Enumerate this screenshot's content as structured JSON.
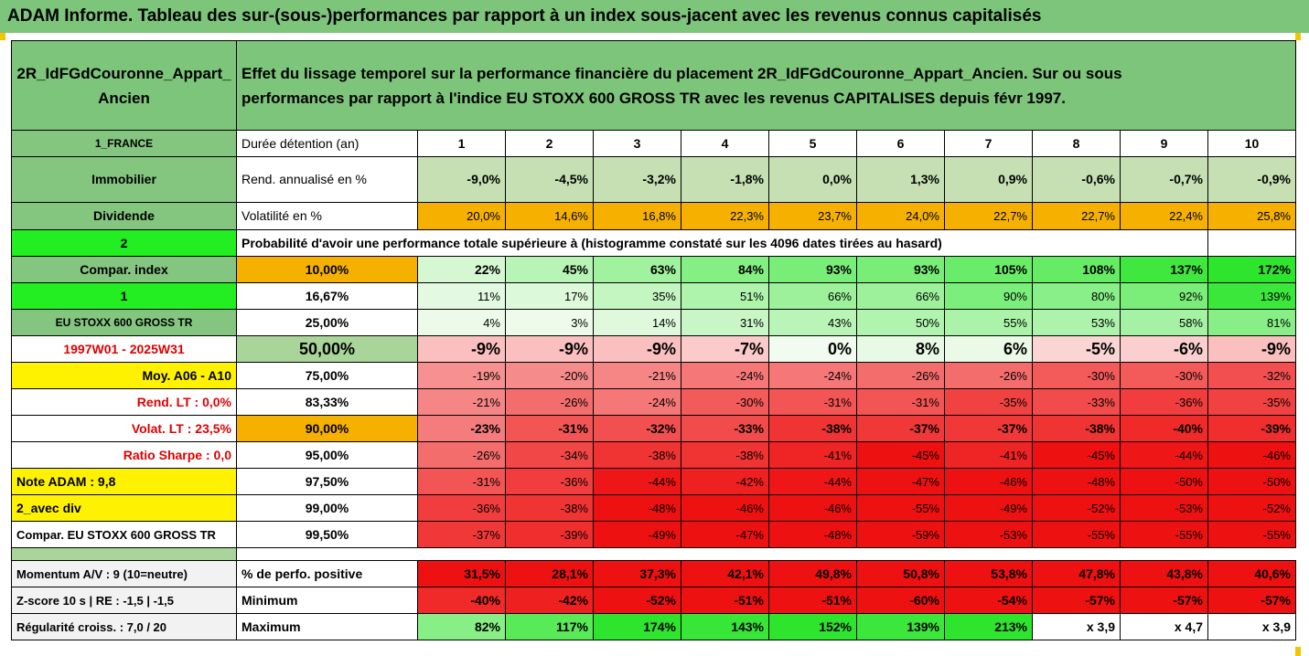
{
  "title": "ADAM Informe. Tableau des sur-(sous-)performances par rapport à un index sous-jacent avec les revenus connus capitalisés",
  "header": {
    "asset": "2R_IdFGdCouronne_Appart_Ancien",
    "description_line1": "Effet du lissage temporel sur la performance financière du placement 2R_IdFGdCouronne_Appart_Ancien. Sur ou sous",
    "description_line2": "performances par rapport à l'indice EU STOXX 600 GROSS TR avec les revenus CAPITALISES depuis févr 1997."
  },
  "side": {
    "country": "1_FRANCE",
    "category": "Immobilier",
    "dividend": "Dividende",
    "two": "2",
    "compar_index": "Compar. index",
    "one": "1",
    "index_name": "EU STOXX 600 GROSS TR",
    "period": "1997W01 - 2025W31",
    "moy": "Moy. A06 - A10",
    "rend_lt": "Rend. LT :   0,0%",
    "volat_lt": "Volat. LT :   23,5%",
    "sharpe": "Ratio Sharpe :   0,0",
    "note": "Note ADAM : 9,8",
    "avec_div": "2_avec div",
    "compar_full": "Compar. EU STOXX 600 GROSS TR",
    "momentum": "Momentum A/V : 9 (10=neutre)",
    "zscore": "Z-score 10 s  | RE : -1,5  | -1,5",
    "regularite": "Régularité croiss. : 7,0 / 20"
  },
  "rows": {
    "duree_label": "Durée détention (an)",
    "years": [
      "1",
      "2",
      "3",
      "4",
      "5",
      "6",
      "7",
      "8",
      "9",
      "10"
    ],
    "rend_label": "Rend. annualisé en %",
    "rend": [
      "-9,0%",
      "-4,5%",
      "-3,2%",
      "-1,8%",
      "0,0%",
      "1,3%",
      "0,9%",
      "-0,6%",
      "-0,7%",
      "-0,9%"
    ],
    "vol_label": "Volatilité en %",
    "vol": [
      "20,0%",
      "14,6%",
      "16,8%",
      "22,3%",
      "23,7%",
      "24,0%",
      "22,7%",
      "22,7%",
      "22,4%",
      "25,8%"
    ],
    "proba_label": "Probabilité d'avoir une performance totale supérieure à (histogramme constaté sur les 4096 dates tirées au hasard)"
  },
  "percentiles": [
    {
      "p": "10,00%",
      "v": [
        "22%",
        "45%",
        "63%",
        "84%",
        "93%",
        "93%",
        "105%",
        "108%",
        "137%",
        "172%"
      ]
    },
    {
      "p": "16,67%",
      "v": [
        "11%",
        "17%",
        "35%",
        "51%",
        "66%",
        "66%",
        "90%",
        "80%",
        "92%",
        "139%"
      ]
    },
    {
      "p": "25,00%",
      "v": [
        "4%",
        "3%",
        "14%",
        "31%",
        "43%",
        "50%",
        "55%",
        "53%",
        "58%",
        "81%"
      ]
    },
    {
      "p": "50,00%",
      "v": [
        "-9%",
        "-9%",
        "-9%",
        "-7%",
        "0%",
        "8%",
        "6%",
        "-5%",
        "-6%",
        "-9%"
      ]
    },
    {
      "p": "75,00%",
      "v": [
        "-19%",
        "-20%",
        "-21%",
        "-24%",
        "-24%",
        "-26%",
        "-26%",
        "-30%",
        "-30%",
        "-32%"
      ]
    },
    {
      "p": "83,33%",
      "v": [
        "-21%",
        "-26%",
        "-24%",
        "-30%",
        "-31%",
        "-31%",
        "-35%",
        "-33%",
        "-36%",
        "-35%"
      ]
    },
    {
      "p": "90,00%",
      "v": [
        "-23%",
        "-31%",
        "-32%",
        "-33%",
        "-38%",
        "-37%",
        "-37%",
        "-38%",
        "-40%",
        "-39%"
      ]
    },
    {
      "p": "95,00%",
      "v": [
        "-26%",
        "-34%",
        "-38%",
        "-38%",
        "-41%",
        "-45%",
        "-41%",
        "-45%",
        "-44%",
        "-46%"
      ]
    },
    {
      "p": "97,50%",
      "v": [
        "-31%",
        "-36%",
        "-44%",
        "-42%",
        "-44%",
        "-47%",
        "-46%",
        "-48%",
        "-50%",
        "-50%"
      ]
    },
    {
      "p": "99,00%",
      "v": [
        "-36%",
        "-38%",
        "-48%",
        "-46%",
        "-46%",
        "-55%",
        "-49%",
        "-52%",
        "-53%",
        "-52%"
      ]
    },
    {
      "p": "99,50%",
      "v": [
        "-37%",
        "-39%",
        "-49%",
        "-47%",
        "-48%",
        "-59%",
        "-53%",
        "-55%",
        "-55%",
        "-55%"
      ]
    }
  ],
  "bottom": {
    "pos_label": "% de perfo. positive",
    "pos": [
      "31,5%",
      "28,1%",
      "37,3%",
      "42,1%",
      "49,8%",
      "50,8%",
      "53,8%",
      "47,8%",
      "43,8%",
      "40,6%"
    ],
    "min_label": "Minimum",
    "min": [
      "-40%",
      "-42%",
      "-52%",
      "-51%",
      "-51%",
      "-60%",
      "-54%",
      "-57%",
      "-57%",
      "-57%"
    ],
    "max_label": "Maximum",
    "max": [
      "82%",
      "117%",
      "174%",
      "143%",
      "152%",
      "139%",
      "213%",
      "x 3,9",
      "x 4,7",
      "x 3,9"
    ]
  },
  "colors": {
    "green_header": "#7dc57a",
    "flag_green": "#22ee22",
    "flag_yellow": "#fff200",
    "orange": "#f6b000",
    "red_text": "#e00000"
  }
}
